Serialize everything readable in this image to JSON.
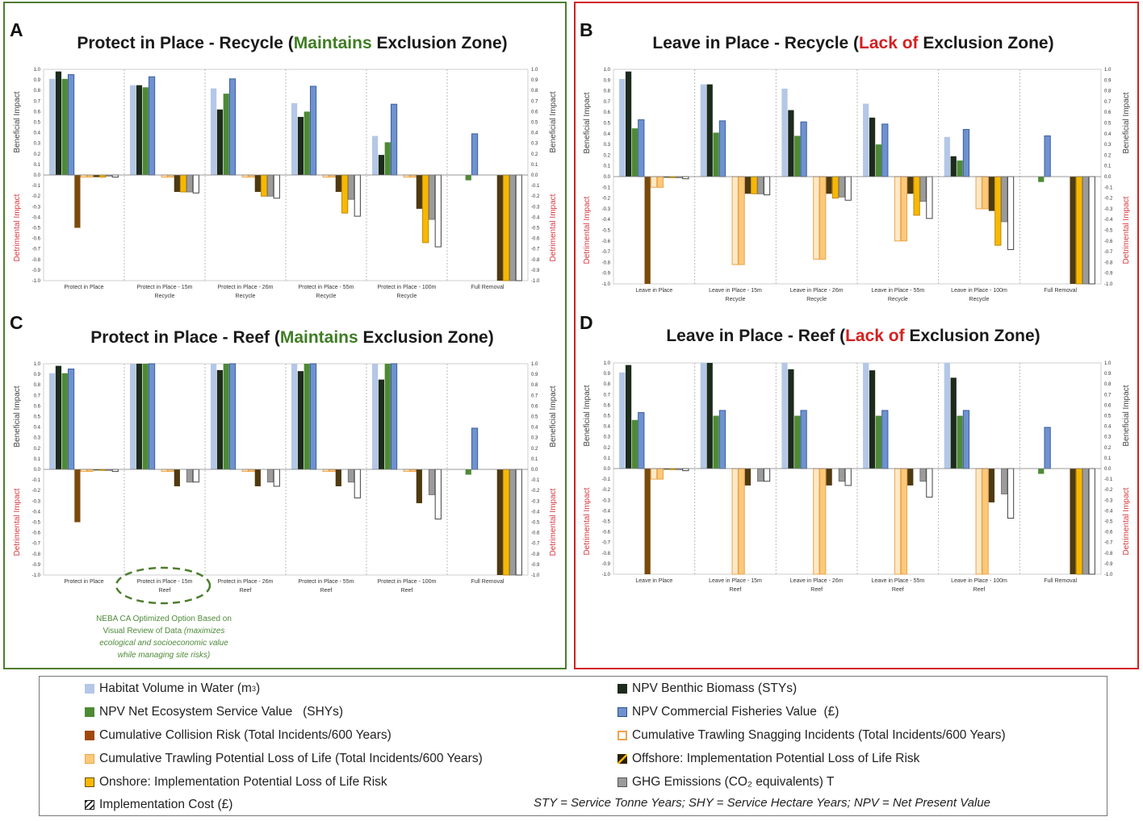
{
  "panels": [
    {
      "letter": "A",
      "title_prefix": "Protect in Place - Recycle (",
      "title_highlight": "Maintains",
      "title_suffix": " Exclusion Zone)",
      "highlight_color": "#3f7d24",
      "frame_color": "#4e7d2e"
    },
    {
      "letter": "B",
      "title_prefix": "Leave in Place - Recycle (",
      "title_highlight": "Lack of",
      "title_suffix": " Exclusion Zone)",
      "highlight_color": "#d42020",
      "frame_color": "#d42020"
    },
    {
      "letter": "C",
      "title_prefix": "Protect in Place - Reef (",
      "title_highlight": "Maintains",
      "title_suffix": " Exclusion Zone)",
      "highlight_color": "#3f7d24",
      "frame_color": "#4e7d2e"
    },
    {
      "letter": "D",
      "title_prefix": "Leave in Place - Reef (",
      "title_highlight": "Lack of",
      "title_suffix": " Exclusion Zone)",
      "highlight_color": "#d42020",
      "frame_color": "#d42020"
    }
  ],
  "axis_labels": {
    "beneficial": "Beneficial Impact",
    "detrimental": "Detrimental Impact",
    "beneficial_color": "#444444",
    "detrimental_color": "#d9383f"
  },
  "callout": {
    "line1": "NEBA CA Optimized Option Based on",
    "line2_plain": "Visual Review of Data ",
    "line2_italic": "(maximizes",
    "line3": "ecological and socioeconomic value",
    "line4": "while managing site risks)"
  },
  "series_styles": [
    {
      "key": "habitat",
      "fill": "#b4c7e7",
      "stroke": "none"
    },
    {
      "key": "benthic",
      "fill": "#1c2b1c",
      "stroke": "none"
    },
    {
      "key": "ecosystem",
      "fill": "#4e8a35",
      "stroke": "none"
    },
    {
      "key": "fisheries",
      "fill": "#6f92cf",
      "stroke": "#3a5fa0"
    },
    {
      "key": "collision",
      "fill": "#7a4a0c",
      "stroke": "none"
    },
    {
      "key": "snagging",
      "fill": "#fde9c8",
      "stroke": "#f0a24a"
    },
    {
      "key": "trawl_life",
      "fill": "#fcc97a",
      "stroke": "#e8a448"
    },
    {
      "key": "offshore",
      "fill": "#4f3a10",
      "stroke": "none"
    },
    {
      "key": "onshore",
      "fill": "#f8b800",
      "stroke": "#c08a00"
    },
    {
      "key": "ghg",
      "fill": "#9b9b9b",
      "stroke": "#777777"
    },
    {
      "key": "cost",
      "fill": "#ffffff",
      "stroke": "#444444"
    }
  ],
  "chart_data": [
    {
      "panel": "A",
      "type": "bar",
      "title": "Protect in Place - Recycle (Maintains Exclusion Zone)",
      "ylabel_top": "Beneficial Impact",
      "ylabel_bottom": "Detrimental Impact",
      "ylim": [
        -1.0,
        1.0
      ],
      "yticks": [
        "1.0",
        "0.9",
        "0.8",
        "0.7",
        "0.6",
        "0.5",
        "0.4",
        "0.3",
        "0.2",
        "0.1",
        "0.0",
        "-0.1",
        "-0.2",
        "-0.3",
        "-0.4",
        "-0.5",
        "-0.6",
        "-0.7",
        "-0.8",
        "-0.9",
        "-1.0"
      ],
      "categories": [
        [
          "Protect in Place"
        ],
        [
          "Protect in Place - 15m",
          "Recycle"
        ],
        [
          "Protect in Place - 26m",
          "Recycle"
        ],
        [
          "Protect in Place - 55m",
          "Recycle"
        ],
        [
          "Protect in Place - 100m",
          "Recycle"
        ],
        [
          "Full Removal"
        ]
      ],
      "series": [
        {
          "name": "Habitat Volume in Water",
          "values": [
            0.91,
            0.85,
            0.82,
            0.68,
            0.37,
            0
          ]
        },
        {
          "name": "NPV Benthic Biomass",
          "values": [
            0.98,
            0.85,
            0.62,
            0.55,
            0.19,
            0
          ]
        },
        {
          "name": "NPV Net Ecosystem Service Value",
          "values": [
            0.91,
            0.83,
            0.77,
            0.6,
            0.31,
            -0.05
          ]
        },
        {
          "name": "NPV Commercial Fisheries Value",
          "values": [
            0.95,
            0.93,
            0.91,
            0.84,
            0.67,
            0.39
          ]
        },
        {
          "name": "Cumulative Collision Risk",
          "values": [
            -0.5,
            0,
            0,
            0,
            0,
            0
          ]
        },
        {
          "name": "Cumulative Trawling Snagging Incidents",
          "values": [
            -0.02,
            -0.02,
            -0.02,
            -0.02,
            -0.02,
            0
          ]
        },
        {
          "name": "Cumulative Trawling Potential Loss of Life",
          "values": [
            -0.02,
            -0.02,
            -0.02,
            -0.02,
            -0.02,
            0
          ]
        },
        {
          "name": "Offshore: Implementation Potential Loss of Life Risk",
          "values": [
            -0.02,
            -0.16,
            -0.16,
            -0.16,
            -0.32,
            -1.0
          ]
        },
        {
          "name": "Onshore: Implementation Potential Loss of Life Risk",
          "values": [
            -0.02,
            -0.16,
            -0.2,
            -0.36,
            -0.64,
            -1.0
          ]
        },
        {
          "name": "GHG Emissions",
          "values": [
            -0.01,
            -0.16,
            -0.2,
            -0.23,
            -0.42,
            -1.0
          ]
        },
        {
          "name": "Implementation Cost",
          "values": [
            -0.02,
            -0.17,
            -0.22,
            -0.39,
            -0.68,
            -1.0
          ]
        }
      ]
    },
    {
      "panel": "B",
      "type": "bar",
      "title": "Leave in Place - Recycle (Lack of Exclusion Zone)",
      "ylabel_top": "Beneficial Impact",
      "ylabel_bottom": "Detrimental Impact",
      "ylim": [
        -1.0,
        1.0
      ],
      "yticks": [
        "1.0",
        "0.9",
        "0.8",
        "0.7",
        "0.6",
        "0.5",
        "0.4",
        "0.3",
        "0.2",
        "0.1",
        "0.0",
        "-0.1",
        "-0.2",
        "-0.3",
        "-0.4",
        "-0.5",
        "-0.6",
        "-0.7",
        "-0.8",
        "-0.9",
        "-1.0"
      ],
      "categories": [
        [
          "Leave in Place"
        ],
        [
          "Leave in Place - 15m",
          "Recycle"
        ],
        [
          "Leave in Place - 26m",
          "Recycle"
        ],
        [
          "Leave in Place - 55m",
          "Recycle"
        ],
        [
          "Leave in Place - 100m",
          "Recycle"
        ],
        [
          "Full Removal"
        ]
      ],
      "series": [
        {
          "name": "Habitat Volume in Water",
          "values": [
            0.91,
            0.86,
            0.82,
            0.68,
            0.37,
            0
          ]
        },
        {
          "name": "NPV Benthic Biomass",
          "values": [
            0.98,
            0.86,
            0.62,
            0.55,
            0.19,
            0
          ]
        },
        {
          "name": "NPV Net Ecosystem Service Value",
          "values": [
            0.45,
            0.41,
            0.38,
            0.3,
            0.15,
            -0.05
          ]
        },
        {
          "name": "NPV Commercial Fisheries Value",
          "values": [
            0.53,
            0.52,
            0.51,
            0.49,
            0.44,
            0.38
          ]
        },
        {
          "name": "Cumulative Collision Risk",
          "values": [
            -1.0,
            0,
            0,
            0,
            0,
            0
          ]
        },
        {
          "name": "Cumulative Trawling Snagging Incidents",
          "values": [
            -0.1,
            -0.82,
            -0.77,
            -0.6,
            -0.3,
            0
          ]
        },
        {
          "name": "Cumulative Trawling Potential Loss of Life",
          "values": [
            -0.1,
            -0.82,
            -0.77,
            -0.6,
            -0.3,
            0
          ]
        },
        {
          "name": "Offshore: Implementation Potential Loss of Life Risk",
          "values": [
            -0.01,
            -0.16,
            -0.16,
            -0.16,
            -0.32,
            -1.0
          ]
        },
        {
          "name": "Onshore: Implementation Potential Loss of Life Risk",
          "values": [
            -0.01,
            -0.16,
            -0.2,
            -0.36,
            -0.64,
            -1.0
          ]
        },
        {
          "name": "GHG Emissions",
          "values": [
            -0.01,
            -0.16,
            -0.19,
            -0.23,
            -0.42,
            -1.0
          ]
        },
        {
          "name": "Implementation Cost",
          "values": [
            -0.02,
            -0.17,
            -0.22,
            -0.39,
            -0.68,
            -1.0
          ]
        }
      ]
    },
    {
      "panel": "C",
      "type": "bar",
      "title": "Protect in Place - Reef (Maintains Exclusion Zone)",
      "ylabel_top": "Beneficial Impact",
      "ylabel_bottom": "Detrimental Impact",
      "ylim": [
        -1.0,
        1.0
      ],
      "yticks": [
        "1.0",
        "0.9",
        "0.8",
        "0.7",
        "0.6",
        "0.5",
        "0.4",
        "0.3",
        "0.2",
        "0.1",
        "0.0",
        "-0.1",
        "-0.2",
        "-0.3",
        "-0.4",
        "-0.5",
        "-0.6",
        "-0.7",
        "-0.8",
        "-0.9",
        "-1.0"
      ],
      "categories": [
        [
          "Protect in Place"
        ],
        [
          "Protect in Place - 15m",
          "Reef"
        ],
        [
          "Protect in Place - 26m",
          "Reef"
        ],
        [
          "Protect in Place - 55m",
          "Reef"
        ],
        [
          "Protect in Place - 100m",
          "Reef"
        ],
        [
          "Full Removal"
        ]
      ],
      "series": [
        {
          "name": "Habitat Volume in Water",
          "values": [
            0.91,
            1.0,
            1.0,
            1.0,
            1.0,
            0
          ]
        },
        {
          "name": "NPV Benthic Biomass",
          "values": [
            0.98,
            1.0,
            0.94,
            0.93,
            0.85,
            0
          ]
        },
        {
          "name": "NPV Net Ecosystem Service Value",
          "values": [
            0.91,
            1.0,
            1.0,
            1.0,
            1.0,
            -0.05
          ]
        },
        {
          "name": "NPV Commercial Fisheries Value",
          "values": [
            0.95,
            1.0,
            1.0,
            1.0,
            1.0,
            0.39
          ]
        },
        {
          "name": "Cumulative Collision Risk",
          "values": [
            -0.5,
            0,
            0,
            0,
            0,
            0
          ]
        },
        {
          "name": "Cumulative Trawling Snagging Incidents",
          "values": [
            -0.02,
            -0.02,
            -0.02,
            -0.02,
            -0.02,
            0
          ]
        },
        {
          "name": "Cumulative Trawling Potential Loss of Life",
          "values": [
            -0.02,
            -0.02,
            -0.02,
            -0.02,
            -0.02,
            0
          ]
        },
        {
          "name": "Offshore: Implementation Potential Loss of Life Risk",
          "values": [
            -0.01,
            -0.16,
            -0.16,
            -0.16,
            -0.32,
            -1.0
          ]
        },
        {
          "name": "Onshore: Implementation Potential Loss of Life Risk",
          "values": [
            -0.01,
            0,
            0,
            0,
            0,
            -1.0
          ]
        },
        {
          "name": "GHG Emissions",
          "values": [
            -0.01,
            -0.12,
            -0.12,
            -0.12,
            -0.24,
            -1.0
          ]
        },
        {
          "name": "Implementation Cost",
          "values": [
            -0.02,
            -0.12,
            -0.16,
            -0.27,
            -0.47,
            -1.0
          ]
        }
      ]
    },
    {
      "panel": "D",
      "type": "bar",
      "title": "Leave in Place - Reef (Lack of Exclusion Zone)",
      "ylabel_top": "Beneficial Impact",
      "ylabel_bottom": "Detrimental Impact",
      "ylim": [
        -1.0,
        1.0
      ],
      "yticks": [
        "1.0",
        "0.9",
        "0.8",
        "0.7",
        "0.6",
        "0.5",
        "0.4",
        "0.3",
        "0.2",
        "0.1",
        "0.0",
        "-0.1",
        "-0.2",
        "-0.3",
        "-0.4",
        "-0.5",
        "-0.6",
        "-0.7",
        "-0.8",
        "-0.9",
        "-1.0"
      ],
      "categories": [
        [
          "Leave in Place"
        ],
        [
          "Leave in Place - 15m",
          "Reef"
        ],
        [
          "Leave in Place - 26m",
          "Reef"
        ],
        [
          "Leave in Place - 55m",
          "Reef"
        ],
        [
          "Leave in Place - 100m",
          "Reef"
        ],
        [
          "Full Removal"
        ]
      ],
      "series": [
        {
          "name": "Habitat Volume in Water",
          "values": [
            0.91,
            1.0,
            1.0,
            1.0,
            1.0,
            0
          ]
        },
        {
          "name": "NPV Benthic Biomass",
          "values": [
            0.98,
            1.0,
            0.94,
            0.93,
            0.86,
            0
          ]
        },
        {
          "name": "NPV Net Ecosystem Service Value",
          "values": [
            0.46,
            0.5,
            0.5,
            0.5,
            0.5,
            -0.05
          ]
        },
        {
          "name": "NPV Commercial Fisheries Value",
          "values": [
            0.53,
            0.55,
            0.55,
            0.55,
            0.55,
            0.39
          ]
        },
        {
          "name": "Cumulative Collision Risk",
          "values": [
            -1.0,
            0,
            0,
            0,
            0,
            0
          ]
        },
        {
          "name": "Cumulative Trawling Snagging Incidents",
          "values": [
            -0.1,
            -1.0,
            -1.0,
            -1.0,
            -1.0,
            0
          ]
        },
        {
          "name": "Cumulative Trawling Potential Loss of Life",
          "values": [
            -0.1,
            -1.0,
            -1.0,
            -1.0,
            -1.0,
            0
          ]
        },
        {
          "name": "Offshore: Implementation Potential Loss of Life Risk",
          "values": [
            -0.01,
            -0.16,
            -0.16,
            -0.16,
            -0.32,
            -1.0
          ]
        },
        {
          "name": "Onshore: Implementation Potential Loss of Life Risk",
          "values": [
            -0.01,
            0,
            0,
            0,
            0,
            -1.0
          ]
        },
        {
          "name": "GHG Emissions",
          "values": [
            -0.01,
            -0.12,
            -0.12,
            -0.12,
            -0.24,
            -1.0
          ]
        },
        {
          "name": "Implementation Cost",
          "values": [
            -0.02,
            -0.12,
            -0.16,
            -0.27,
            -0.47,
            -1.0
          ]
        }
      ]
    }
  ],
  "legend": {
    "left": [
      {
        "key": "habitat",
        "text": "Habitat Volume in Water (m",
        "sup": "3",
        "tail": ")"
      },
      {
        "key": "ecosystem",
        "text": "NPV Net Ecosystem Service Value   (SHYs)"
      },
      {
        "key": "collision",
        "text": "Cumulative Collision Risk (Total Incidents/600 Years)"
      },
      {
        "key": "trawl_life",
        "text": "Cumulative Trawling Potential Loss of Life (Total Incidents/600 Years)"
      },
      {
        "key": "onshore",
        "text": "Onshore: Implementation Potential Loss of Life Risk"
      },
      {
        "key": "cost",
        "text": "Implementation Cost (£)"
      }
    ],
    "right": [
      {
        "key": "benthic",
        "text": "NPV Benthic Biomass (STYs)"
      },
      {
        "key": "fisheries",
        "text": "NPV Commercial Fisheries Value  (£)"
      },
      {
        "key": "snagging",
        "text": "Cumulative Trawling Snagging Incidents (Total Incidents/600 Years)"
      },
      {
        "key": "offshore",
        "text": "Offshore: Implementation Potential Loss of Life Risk"
      },
      {
        "key": "ghg",
        "text": "GHG Emissions (CO₂ equivalents) T"
      }
    ],
    "footnote": "STY = Service Tonne Years; SHY = Service Hectare Years; NPV = Net Present Value"
  }
}
